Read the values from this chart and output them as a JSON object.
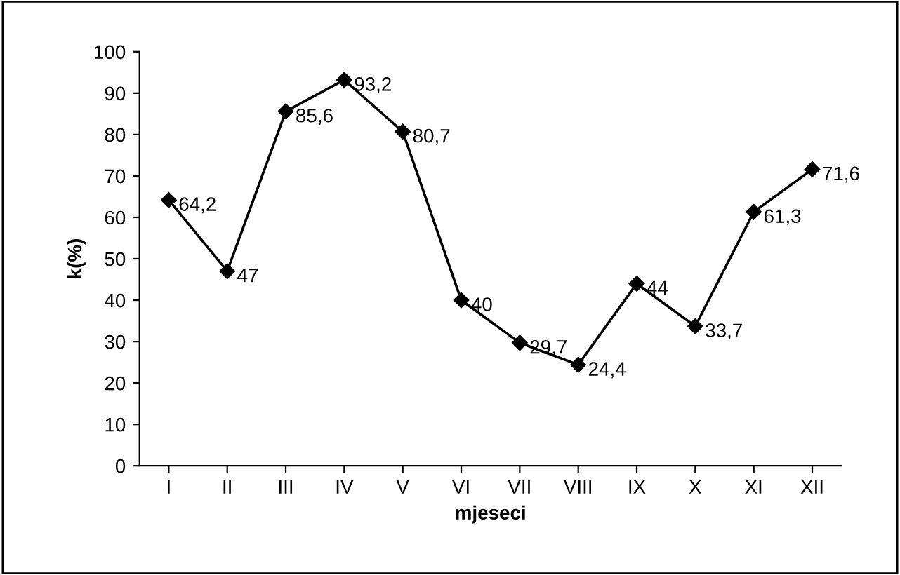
{
  "chart_data": {
    "type": "line",
    "xlabel": "mjeseci",
    "ylabel": "k(%)",
    "categories": [
      "I",
      "II",
      "III",
      "IV",
      "V",
      "VI",
      "VII",
      "VIII",
      "IX",
      "X",
      "XI",
      "XII"
    ],
    "series": [
      {
        "color": "#000000",
        "values": [
          64.2,
          47,
          85.6,
          93.2,
          80.7,
          40,
          29.7,
          24.4,
          44,
          33.7,
          61.3,
          71.6
        ],
        "value_labels": [
          "64,2",
          "47",
          "85,6",
          "93,2",
          "80,7",
          "40",
          "29,7",
          "24,4",
          "44",
          "33,7",
          "61,3",
          "71,6"
        ]
      }
    ],
    "ylim": [
      0,
      100
    ],
    "yticks": [
      0,
      10,
      20,
      30,
      40,
      50,
      60,
      70,
      80,
      90,
      100
    ],
    "grid": false,
    "legend": false,
    "marker": "diamond",
    "line_style": "solid"
  }
}
